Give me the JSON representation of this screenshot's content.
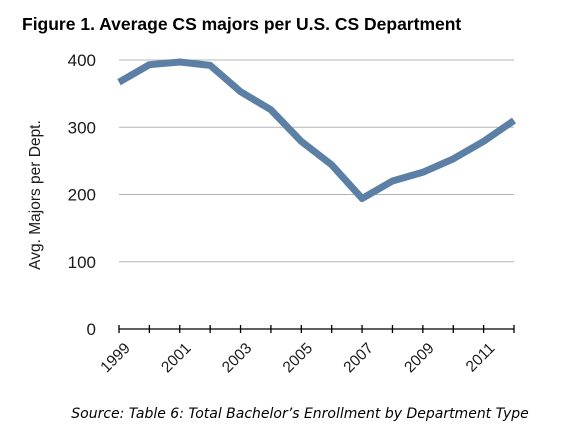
{
  "chart_data": {
    "type": "line",
    "title": "Figure 1. Average CS majors per U.S. CS Department",
    "ylabel": "Avg. Majors per Dept.",
    "xlabel": "",
    "x": [
      1999,
      2000,
      2001,
      2002,
      2003,
      2004,
      2005,
      2006,
      2007,
      2008,
      2009,
      2010,
      2011,
      2012
    ],
    "series": [
      {
        "values": [
          367,
          393,
          397,
          392,
          353,
          326,
          279,
          244,
          194,
          220,
          233,
          253,
          279,
          310
        ],
        "color": "#5b7fa5"
      }
    ],
    "xticks": [
      "1999",
      "2001",
      "2003",
      "2005",
      "2007",
      "2009",
      "2011"
    ],
    "yticks": [
      "0",
      "100",
      "200",
      "300",
      "400"
    ],
    "ylim": [
      0,
      400
    ],
    "grid": "horizontal",
    "source": "Source: Table 6: Total Bachelor’s Enrollment by Department Type"
  }
}
